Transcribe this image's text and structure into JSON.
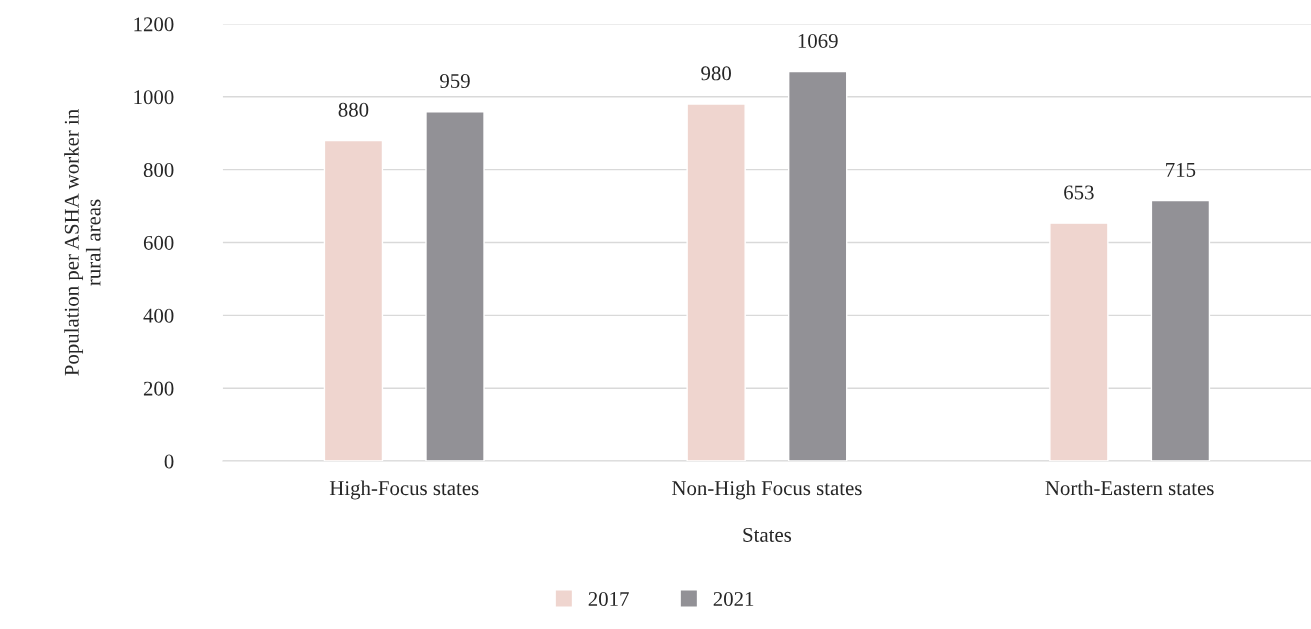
{
  "chart_data": {
    "type": "bar",
    "xlabel": "States",
    "ylabel": "Population per ASHA worker in\nrural areas",
    "categories": [
      "High-Focus states",
      "Non-High Focus states",
      "North-Eastern states"
    ],
    "series": [
      {
        "name": "2017",
        "color": "#efd5cf",
        "values": [
          880,
          980,
          653
        ]
      },
      {
        "name": "2021",
        "color": "#929196",
        "values": [
          959,
          1069,
          715
        ]
      }
    ],
    "ylim": [
      0,
      1200
    ],
    "yticks": [
      0,
      200,
      400,
      600,
      800,
      1000,
      1200
    ],
    "grid": "y",
    "legend": "bottom",
    "data_labels": true
  }
}
